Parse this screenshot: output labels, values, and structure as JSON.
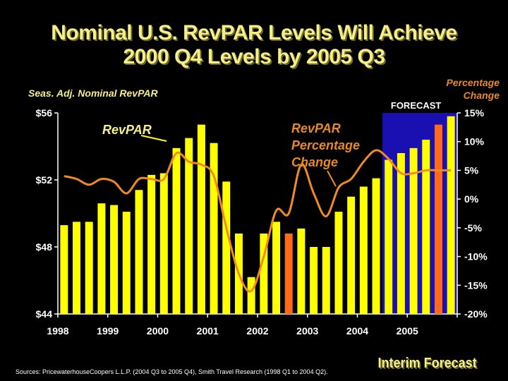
{
  "header": {
    "title_line1": "Nominal U.S. RevPAR Levels Will Achieve",
    "title_line2": "2000 Q4 Levels by 2005 Q3"
  },
  "axis_labels": {
    "left": "Seas. Adj. Nominal RevPAR",
    "right_line1": "Percentage",
    "right_line2": "Change"
  },
  "footer": {
    "source": "Sources: PricewaterhouseCoopers L.L.P. (2004 Q3 to 2005 Q4), Smith Travel Research (1998 Q1 to 2004 Q2).",
    "interim": "Interim Forecast"
  },
  "colors": {
    "bar": "#ffff00",
    "highlight_bar": "#ff6a1a",
    "line": "#f08a24",
    "forecast_bg": "#1a0fb0",
    "title": "#f4ee8c"
  },
  "chart_data": {
    "type": "bar",
    "title": "Nominal U.S. RevPAR Levels Will Achieve 2000 Q4 Levels by 2005 Q3",
    "ylabel": "Seas. Adj. Nominal RevPAR",
    "y2label": "Percentage Change",
    "ylim": [
      44,
      56
    ],
    "y2lim": [
      -20,
      15
    ],
    "yticks": [
      "$44",
      "$48",
      "$52",
      "$56"
    ],
    "y2ticks": [
      "-20%",
      "-15%",
      "-10%",
      "-5%",
      "0%",
      "5%",
      "10%",
      "15%"
    ],
    "year_labels": [
      "1998",
      "1999",
      "2000",
      "2001",
      "2002",
      "2003",
      "2004",
      "2005"
    ],
    "forecast_label": "FORECAST",
    "forecast_start_index": 26,
    "highlight_indices": [
      18,
      30
    ],
    "annotations": {
      "revpar": "RevPAR",
      "pct_line1": "RevPAR",
      "pct_line2": "Percentage",
      "pct_line3": "Change"
    },
    "categories": [
      "1998 Q1",
      "1998 Q2",
      "1998 Q3",
      "1998 Q4",
      "1999 Q1",
      "1999 Q2",
      "1999 Q3",
      "1999 Q4",
      "2000 Q1",
      "2000 Q2",
      "2000 Q3",
      "2000 Q4",
      "2001 Q1",
      "2001 Q2",
      "2001 Q3",
      "2001 Q4",
      "2002 Q1",
      "2002 Q2",
      "2002 Q3",
      "2002 Q4",
      "2003 Q1",
      "2003 Q2",
      "2003 Q3",
      "2003 Q4",
      "2004 Q1",
      "2004 Q2",
      "2004 Q3",
      "2004 Q4",
      "2005 Q1",
      "2005 Q2",
      "2005 Q3",
      "2005 Q4"
    ],
    "series": [
      {
        "name": "RevPAR",
        "type": "bar",
        "values": [
          49.3,
          49.5,
          49.5,
          50.6,
          50.5,
          50.1,
          51.4,
          52.3,
          52.4,
          53.9,
          54.5,
          55.3,
          54.2,
          51.9,
          48.8,
          46.2,
          48.8,
          49.5,
          48.8,
          49.1,
          48.0,
          48.0,
          50.1,
          51.0,
          51.6,
          52.1,
          53.2,
          53.6,
          53.9,
          54.4,
          55.3,
          55.8
        ]
      },
      {
        "name": "RevPAR Percentage Change",
        "type": "line",
        "values": [
          4.0,
          3.5,
          2.5,
          3.5,
          3.0,
          1.0,
          3.5,
          3.5,
          3.5,
          8.0,
          6.5,
          6.0,
          4.0,
          -5.0,
          -13.0,
          -16.0,
          -10.0,
          -2.0,
          -2.5,
          6.0,
          1.0,
          -3.0,
          2.0,
          3.5,
          6.5,
          8.5,
          7.0,
          4.5,
          4.5,
          5.0,
          5.0,
          5.0
        ]
      }
    ]
  }
}
